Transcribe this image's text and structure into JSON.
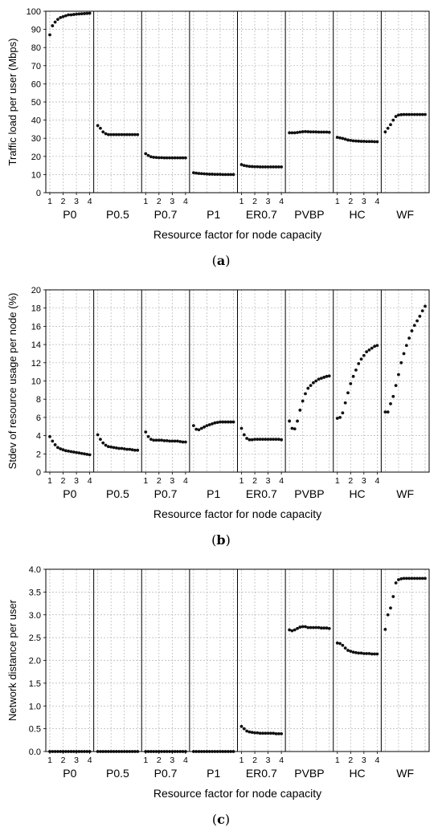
{
  "chart_data": [
    {
      "type": "scatter",
      "panel_label": "a",
      "ylabel": "Traffic load per user (Mbps)",
      "xlabel": "Resource factor for node capacity",
      "ylim": [
        0,
        100
      ],
      "yticks": [
        0,
        10,
        20,
        30,
        40,
        50,
        60,
        70,
        80,
        90,
        100
      ],
      "xticks": [
        "1",
        "2",
        "3",
        "4"
      ],
      "grid": true,
      "groups": [
        {
          "name": "P0",
          "show_xticks": true,
          "y": [
            87,
            92,
            94,
            95.5,
            96.5,
            97,
            97.5,
            98,
            98,
            98.2,
            98.4,
            98.5,
            98.6,
            98.7,
            98.8,
            98.9
          ]
        },
        {
          "name": "P0.5",
          "show_xticks": false,
          "y": [
            37,
            35.5,
            33.5,
            32.5,
            32,
            32,
            32,
            32,
            32,
            32,
            32,
            32,
            32,
            32,
            32,
            32
          ]
        },
        {
          "name": "P0.7",
          "show_xticks": true,
          "y": [
            21.5,
            20.5,
            19.8,
            19.5,
            19.4,
            19.3,
            19.3,
            19.2,
            19.2,
            19.2,
            19.2,
            19.2,
            19.2,
            19.2,
            19.2,
            19.2
          ]
        },
        {
          "name": "P1",
          "show_xticks": false,
          "y": [
            11,
            10.8,
            10.6,
            10.5,
            10.4,
            10.3,
            10.2,
            10.2,
            10.1,
            10.1,
            10.1,
            10,
            10,
            10,
            10,
            10
          ]
        },
        {
          "name": "ER0.7",
          "show_xticks": true,
          "y": [
            15.5,
            15,
            14.7,
            14.5,
            14.4,
            14.3,
            14.3,
            14.2,
            14.2,
            14.2,
            14.2,
            14.2,
            14.2,
            14.2,
            14.2,
            14.2
          ]
        },
        {
          "name": "PVBP",
          "show_xticks": false,
          "y": [
            33,
            33,
            33,
            33.2,
            33.4,
            33.6,
            33.7,
            33.6,
            33.5,
            33.5,
            33.5,
            33.4,
            33.4,
            33.4,
            33.4,
            33.3
          ]
        },
        {
          "name": "HC",
          "show_xticks": true,
          "y": [
            30.5,
            30.2,
            29.9,
            29.5,
            29,
            28.8,
            28.6,
            28.5,
            28.4,
            28.3,
            28.3,
            28.2,
            28.2,
            28.2,
            28.1,
            28.1
          ]
        },
        {
          "name": "WF",
          "show_xticks": false,
          "y": [
            33.5,
            35.5,
            37.5,
            40,
            42,
            42.8,
            43,
            43.1,
            43.1,
            43.1,
            43.1,
            43.1,
            43.1,
            43.1,
            43.1,
            43.1
          ]
        }
      ]
    },
    {
      "type": "scatter",
      "panel_label": "b",
      "ylabel": "Stdev of resource usage per node (%)",
      "xlabel": "Resource factor for node capacity",
      "ylim": [
        0,
        20
      ],
      "yticks": [
        0,
        2,
        4,
        6,
        8,
        10,
        12,
        14,
        16,
        18,
        20
      ],
      "xticks": [
        "1",
        "2",
        "3",
        "4"
      ],
      "grid": true,
      "groups": [
        {
          "name": "P0",
          "show_xticks": true,
          "y": [
            3.9,
            3.4,
            3,
            2.7,
            2.55,
            2.45,
            2.35,
            2.3,
            2.25,
            2.2,
            2.15,
            2.1,
            2.05,
            2,
            1.95,
            1.9
          ]
        },
        {
          "name": "P0.5",
          "show_xticks": false,
          "y": [
            4.1,
            3.6,
            3.2,
            2.95,
            2.8,
            2.75,
            2.7,
            2.65,
            2.6,
            2.6,
            2.55,
            2.5,
            2.5,
            2.45,
            2.4,
            2.4
          ]
        },
        {
          "name": "P0.7",
          "show_xticks": true,
          "y": [
            4.4,
            3.9,
            3.6,
            3.5,
            3.5,
            3.5,
            3.5,
            3.45,
            3.45,
            3.4,
            3.4,
            3.4,
            3.4,
            3.35,
            3.3,
            3.3
          ]
        },
        {
          "name": "P1",
          "show_xticks": false,
          "y": [
            5.1,
            4.7,
            4.65,
            4.8,
            4.95,
            5.1,
            5.2,
            5.3,
            5.4,
            5.45,
            5.5,
            5.5,
            5.5,
            5.5,
            5.5,
            5.5
          ]
        },
        {
          "name": "ER0.7",
          "show_xticks": true,
          "y": [
            4.8,
            4.1,
            3.7,
            3.55,
            3.55,
            3.6,
            3.6,
            3.6,
            3.6,
            3.6,
            3.6,
            3.6,
            3.6,
            3.6,
            3.6,
            3.55
          ]
        },
        {
          "name": "PVBP",
          "show_xticks": false,
          "y": [
            5.6,
            4.8,
            4.75,
            5.6,
            6.8,
            7.8,
            8.6,
            9.2,
            9.5,
            9.8,
            10,
            10.2,
            10.3,
            10.4,
            10.5,
            10.55
          ]
        },
        {
          "name": "HC",
          "show_xticks": true,
          "y": [
            5.9,
            6,
            6.5,
            7.6,
            8.7,
            9.7,
            10.5,
            11.2,
            11.9,
            12.4,
            12.8,
            13.2,
            13.4,
            13.6,
            13.8,
            13.9
          ]
        },
        {
          "name": "WF",
          "show_xticks": false,
          "y": [
            6.6,
            6.6,
            7.5,
            8.3,
            9.5,
            10.7,
            12,
            13,
            13.9,
            14.7,
            15.5,
            16.1,
            16.6,
            17.1,
            17.7,
            18.2
          ]
        }
      ]
    },
    {
      "type": "scatter",
      "panel_label": "c",
      "ylabel": "Network distance per user",
      "xlabel": "Resource factor for node capacity",
      "ylim": [
        0,
        4
      ],
      "yticks": [
        0,
        0.5,
        1,
        1.5,
        2,
        2.5,
        3,
        3.5,
        4
      ],
      "ytick_labels": [
        "0.0",
        "0.5",
        "1.0",
        "1.5",
        "2.0",
        "2.5",
        "3.0",
        "3.5",
        "4.0"
      ],
      "xticks": [
        "1",
        "2",
        "3",
        "4"
      ],
      "grid": true,
      "groups": [
        {
          "name": "P0",
          "show_xticks": true,
          "y": [
            0,
            0,
            0,
            0,
            0,
            0,
            0,
            0,
            0,
            0,
            0,
            0,
            0,
            0,
            0,
            0
          ]
        },
        {
          "name": "P0.5",
          "show_xticks": false,
          "y": [
            0,
            0,
            0,
            0,
            0,
            0,
            0,
            0,
            0,
            0,
            0,
            0,
            0,
            0,
            0,
            0
          ]
        },
        {
          "name": "P0.7",
          "show_xticks": true,
          "y": [
            0,
            0,
            0,
            0,
            0,
            0,
            0,
            0,
            0,
            0,
            0,
            0,
            0,
            0,
            0,
            0
          ]
        },
        {
          "name": "P1",
          "show_xticks": false,
          "y": [
            0,
            0,
            0,
            0,
            0,
            0,
            0,
            0,
            0,
            0,
            0,
            0,
            0,
            0,
            0,
            0
          ]
        },
        {
          "name": "ER0.7",
          "show_xticks": true,
          "y": [
            0.55,
            0.5,
            0.45,
            0.43,
            0.42,
            0.41,
            0.41,
            0.4,
            0.4,
            0.4,
            0.4,
            0.4,
            0.4,
            0.39,
            0.39,
            0.39
          ]
        },
        {
          "name": "PVBP",
          "show_xticks": false,
          "y": [
            2.67,
            2.65,
            2.67,
            2.7,
            2.73,
            2.74,
            2.74,
            2.72,
            2.72,
            2.72,
            2.72,
            2.72,
            2.71,
            2.71,
            2.71,
            2.7
          ]
        },
        {
          "name": "HC",
          "show_xticks": true,
          "y": [
            2.38,
            2.37,
            2.33,
            2.27,
            2.22,
            2.2,
            2.18,
            2.17,
            2.16,
            2.16,
            2.15,
            2.15,
            2.15,
            2.14,
            2.14,
            2.14
          ]
        },
        {
          "name": "WF",
          "show_xticks": false,
          "y": [
            2.68,
            3,
            3.15,
            3.4,
            3.7,
            3.77,
            3.79,
            3.8,
            3.8,
            3.8,
            3.8,
            3.8,
            3.8,
            3.8,
            3.8,
            3.8
          ]
        }
      ]
    }
  ]
}
